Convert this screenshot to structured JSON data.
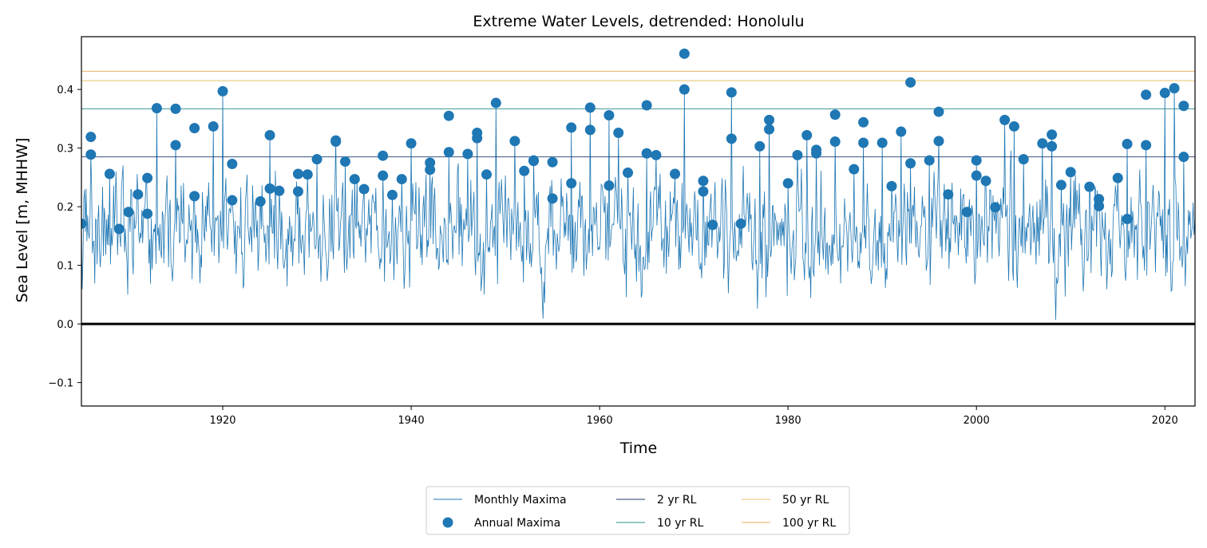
{
  "chart_data": {
    "type": "line",
    "title": "Extreme Water Levels, detrended: Honolulu",
    "xlabel": "Time",
    "ylabel": "Sea Level [m, MHHW]",
    "xlim": [
      1905.0,
      2023.2
    ],
    "ylim": [
      -0.14,
      0.49
    ],
    "xticks": [
      1920,
      1940,
      1960,
      1980,
      2000,
      2020
    ],
    "yticks": [
      -0.1,
      0.0,
      0.1,
      0.2,
      0.3,
      0.4
    ],
    "ytick_labels": [
      "−0.1",
      "0.0",
      "0.1",
      "0.2",
      "0.3",
      "0.4"
    ],
    "grid": false,
    "legend": {
      "position": "bottom-center",
      "columns": 3
    },
    "colors": {
      "monthly": "#1f77b4",
      "annual": "#1f77b4",
      "rl_2": "#1c3d6e",
      "rl_10": "#2a8c8c",
      "rl_50": "#e8c36a",
      "rl_100": "#e0a850",
      "zero": "#000000"
    },
    "series": [
      {
        "name": "Monthly Maxima",
        "kind": "line"
      },
      {
        "name": "Annual Maxima",
        "kind": "scatter"
      }
    ],
    "return_levels": [
      {
        "name": "2 yr RL",
        "value": 0.285
      },
      {
        "name": "10 yr RL",
        "value": 0.367
      },
      {
        "name": "50 yr RL",
        "value": 0.415
      },
      {
        "name": "100 yr RL",
        "value": 0.431
      }
    ],
    "annual_maxima": [
      [
        1905,
        0.171
      ],
      [
        1906,
        0.319
      ],
      [
        1906,
        0.289
      ],
      [
        1908,
        0.256
      ],
      [
        1909,
        0.162
      ],
      [
        1910,
        0.191
      ],
      [
        1911,
        0.221
      ],
      [
        1912,
        0.249
      ],
      [
        1912,
        0.188
      ],
      [
        1913,
        0.368
      ],
      [
        1915,
        0.367
      ],
      [
        1915,
        0.305
      ],
      [
        1917,
        0.334
      ],
      [
        1917,
        0.218
      ],
      [
        1919,
        0.337
      ],
      [
        1920,
        0.397
      ],
      [
        1921,
        0.273
      ],
      [
        1921,
        0.211
      ],
      [
        1924,
        0.209
      ],
      [
        1925,
        0.231
      ],
      [
        1925,
        0.322
      ],
      [
        1926,
        0.227
      ],
      [
        1928,
        0.256
      ],
      [
        1928,
        0.226
      ],
      [
        1929,
        0.255
      ],
      [
        1930,
        0.281
      ],
      [
        1932,
        0.313
      ],
      [
        1932,
        0.311
      ],
      [
        1933,
        0.277
      ],
      [
        1934,
        0.247
      ],
      [
        1935,
        0.23
      ],
      [
        1937,
        0.287
      ],
      [
        1937,
        0.253
      ],
      [
        1938,
        0.22
      ],
      [
        1939,
        0.247
      ],
      [
        1940,
        0.308
      ],
      [
        1942,
        0.275
      ],
      [
        1942,
        0.263
      ],
      [
        1944,
        0.355
      ],
      [
        1944,
        0.293
      ],
      [
        1946,
        0.29
      ],
      [
        1947,
        0.317
      ],
      [
        1947,
        0.326
      ],
      [
        1948,
        0.255
      ],
      [
        1949,
        0.377
      ],
      [
        1951,
        0.312
      ],
      [
        1952,
        0.261
      ],
      [
        1953,
        0.279
      ],
      [
        1953,
        0.278
      ],
      [
        1955,
        0.276
      ],
      [
        1955,
        0.214
      ],
      [
        1957,
        0.24
      ],
      [
        1957,
        0.335
      ],
      [
        1959,
        0.331
      ],
      [
        1959,
        0.369
      ],
      [
        1961,
        0.236
      ],
      [
        1961,
        0.356
      ],
      [
        1962,
        0.326
      ],
      [
        1963,
        0.258
      ],
      [
        1965,
        0.373
      ],
      [
        1965,
        0.291
      ],
      [
        1966,
        0.288
      ],
      [
        1968,
        0.256
      ],
      [
        1969,
        0.461
      ],
      [
        1969,
        0.4
      ],
      [
        1971,
        0.226
      ],
      [
        1971,
        0.244
      ],
      [
        1972,
        0.169
      ],
      [
        1974,
        0.316
      ],
      [
        1974,
        0.395
      ],
      [
        1975,
        0.171
      ],
      [
        1977,
        0.303
      ],
      [
        1978,
        0.332
      ],
      [
        1978,
        0.348
      ],
      [
        1980,
        0.24
      ],
      [
        1981,
        0.288
      ],
      [
        1982,
        0.322
      ],
      [
        1983,
        0.297
      ],
      [
        1983,
        0.291
      ],
      [
        1985,
        0.357
      ],
      [
        1985,
        0.311
      ],
      [
        1987,
        0.264
      ],
      [
        1988,
        0.344
      ],
      [
        1988,
        0.309
      ],
      [
        1990,
        0.309
      ],
      [
        1991,
        0.235
      ],
      [
        1992,
        0.328
      ],
      [
        1993,
        0.412
      ],
      [
        1993,
        0.274
      ],
      [
        1995,
        0.279
      ],
      [
        1996,
        0.362
      ],
      [
        1996,
        0.312
      ],
      [
        1997,
        0.221
      ],
      [
        1999,
        0.191
      ],
      [
        2000,
        0.253
      ],
      [
        2000,
        0.279
      ],
      [
        2001,
        0.244
      ],
      [
        2002,
        0.199
      ],
      [
        2003,
        0.348
      ],
      [
        2004,
        0.337
      ],
      [
        2005,
        0.281
      ],
      [
        2007,
        0.308
      ],
      [
        2008,
        0.303
      ],
      [
        2008,
        0.323
      ],
      [
        2009,
        0.237
      ],
      [
        2010,
        0.259
      ],
      [
        2012,
        0.234
      ],
      [
        2013,
        0.213
      ],
      [
        2013,
        0.201
      ],
      [
        2015,
        0.249
      ],
      [
        2016,
        0.179
      ],
      [
        2016,
        0.307
      ],
      [
        2018,
        0.391
      ],
      [
        2018,
        0.305
      ],
      [
        2020,
        0.394
      ],
      [
        2021,
        0.402
      ],
      [
        2022,
        0.372
      ],
      [
        2022,
        0.285
      ]
    ],
    "monthly_maxima_generation": {
      "seed": 42,
      "mean": 0.155,
      "spread": 0.12,
      "min": -0.11,
      "max": 0.46
    }
  }
}
